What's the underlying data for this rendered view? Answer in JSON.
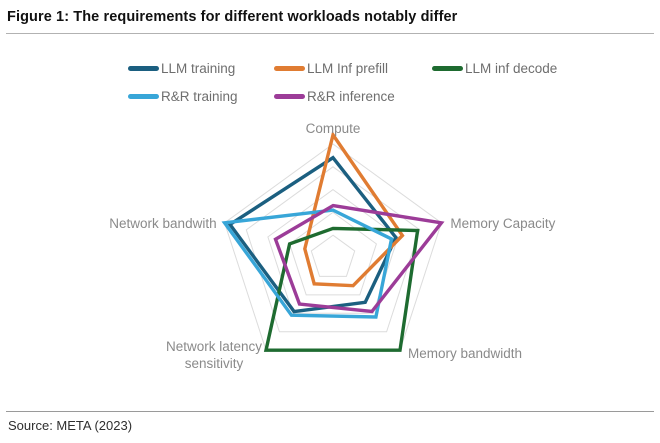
{
  "figure": {
    "title": "Figure 1: The requirements for different workloads notably differ",
    "source": "Source: META (2023)"
  },
  "chart_data": {
    "type": "radar",
    "title": "",
    "categories": [
      "Compute",
      "Memory Capacity",
      "Memory bandwidth",
      "Network latency sensitivity",
      "Network bandwith"
    ],
    "axis_label_lines": [
      [
        "Compute"
      ],
      [
        "Memory Capacity"
      ],
      [
        "Memory bandwidth"
      ],
      [
        "Network latency",
        "sensitivity"
      ],
      [
        "Network bandwith"
      ]
    ],
    "scale": {
      "min": 0,
      "max": 5,
      "rings": 5,
      "grid": true,
      "grid_color": "#dcdcdc"
    },
    "legend_position": "top",
    "series": [
      {
        "name": "LLM training",
        "color": "#1B5F80",
        "values": [
          4.4,
          2.9,
          2.4,
          2.9,
          4.75
        ]
      },
      {
        "name": "LLM Inf prefill",
        "color": "#E07C32",
        "values": [
          5.4,
          3.2,
          1.5,
          1.4,
          1.3
        ]
      },
      {
        "name": "LLM inf decode",
        "color": "#1E6B30",
        "values": [
          1.3,
          3.9,
          5.0,
          5.0,
          2.0
        ]
      },
      {
        "name": "R&R training",
        "color": "#38A6D8",
        "values": [
          2.1,
          2.7,
          3.2,
          3.1,
          5.0
        ]
      },
      {
        "name": "R&R inference",
        "color": "#9C3C98",
        "values": [
          2.3,
          5.0,
          2.9,
          2.5,
          2.65
        ]
      }
    ]
  }
}
